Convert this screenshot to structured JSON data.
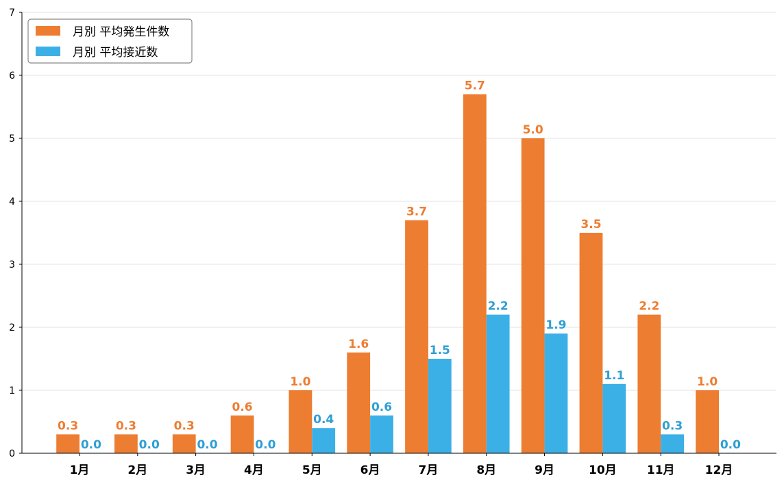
{
  "chart_data": {
    "type": "bar",
    "title": "",
    "xlabel": "",
    "ylabel": "",
    "ylim": [
      0,
      7
    ],
    "yticks": [
      "0",
      "1",
      "2",
      "3",
      "4",
      "5",
      "6",
      "7"
    ],
    "grid": "horizontal",
    "legend_position": "top-left",
    "categories": [
      "1月",
      "2月",
      "3月",
      "4月",
      "5月",
      "6月",
      "7月",
      "8月",
      "9月",
      "10月",
      "11月",
      "12月"
    ],
    "series": [
      {
        "name": "月別 平均発生件数",
        "color": "#ED7D31",
        "label_color": "#ED7D31",
        "values": [
          0.3,
          0.3,
          0.3,
          0.6,
          1.0,
          1.6,
          3.7,
          5.7,
          5.0,
          3.5,
          2.2,
          1.0
        ],
        "labels": [
          "0.3",
          "0.3",
          "0.3",
          "0.6",
          "1.0",
          "1.6",
          "3.7",
          "5.7",
          "5.0",
          "3.5",
          "2.2",
          "1.0"
        ]
      },
      {
        "name": "月別 平均接近数",
        "color": "#3BB0E6",
        "label_color": "#2E9FD4",
        "values": [
          0.0,
          0.0,
          0.0,
          0.0,
          0.4,
          0.6,
          1.5,
          2.2,
          1.9,
          1.1,
          0.3,
          0.0
        ],
        "labels": [
          "0.0",
          "0.0",
          "0.0",
          "0.0",
          "0.4",
          "0.6",
          "1.5",
          "2.2",
          "1.9",
          "1.1",
          "0.3",
          "0.0"
        ]
      }
    ]
  }
}
